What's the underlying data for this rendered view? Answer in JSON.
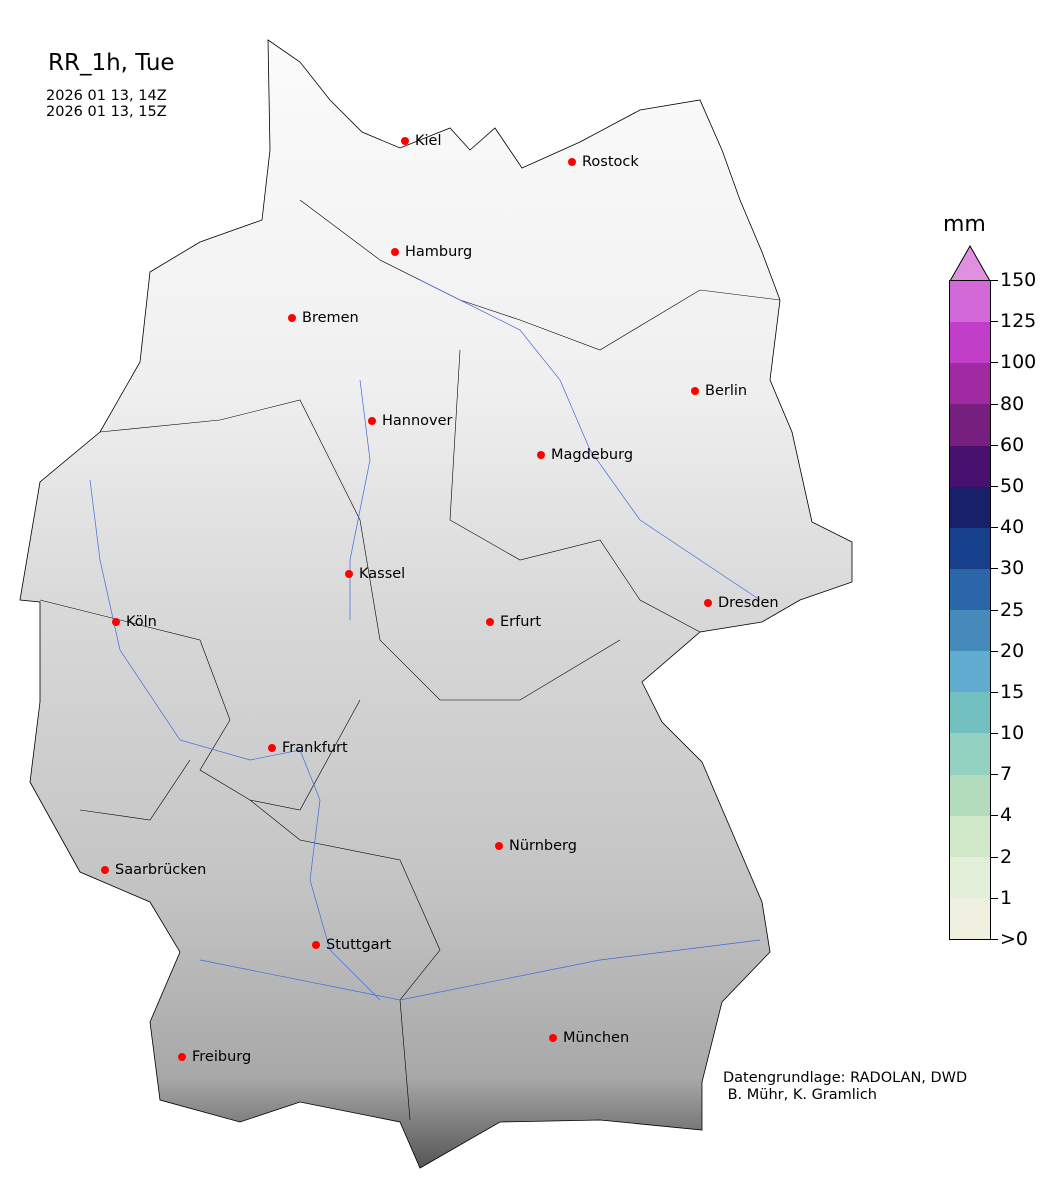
{
  "title": "RR_1h, Tue",
  "time_start": "2026 01 13, 14Z",
  "time_end": "2026 01 13, 15Z",
  "colorbar": {
    "unit": "mm",
    "ticks": [
      ">0",
      "1",
      "2",
      "4",
      "7",
      "10",
      "15",
      "20",
      "25",
      "30",
      "40",
      "50",
      "60",
      "80",
      "100",
      "125",
      "150"
    ],
    "colors": [
      "#f0f0e0",
      "#e2f0d9",
      "#d1e8c8",
      "#b3dcbc",
      "#93d2c0",
      "#72c0c0",
      "#60acd0",
      "#4689bb",
      "#2b67a8",
      "#163f8c",
      "#19206a",
      "#48116e",
      "#761f7e",
      "#a02aa2",
      "#c03ec8",
      "#d368d8"
    ],
    "extend_color": "#e090e0"
  },
  "cities": [
    "Kiel",
    "Rostock",
    "Hamburg",
    "Bremen",
    "Berlin",
    "Hannover",
    "Magdeburg",
    "Kassel",
    "Köln",
    "Erfurt",
    "Dresden",
    "Frankfurt",
    "Nürnberg",
    "Saarbrücken",
    "Stuttgart",
    "Freiburg",
    "München"
  ],
  "credit": {
    "line1": "Datengrundlage: RADOLAN, DWD",
    "line2": " B. Mühr, K. Gramlich"
  }
}
